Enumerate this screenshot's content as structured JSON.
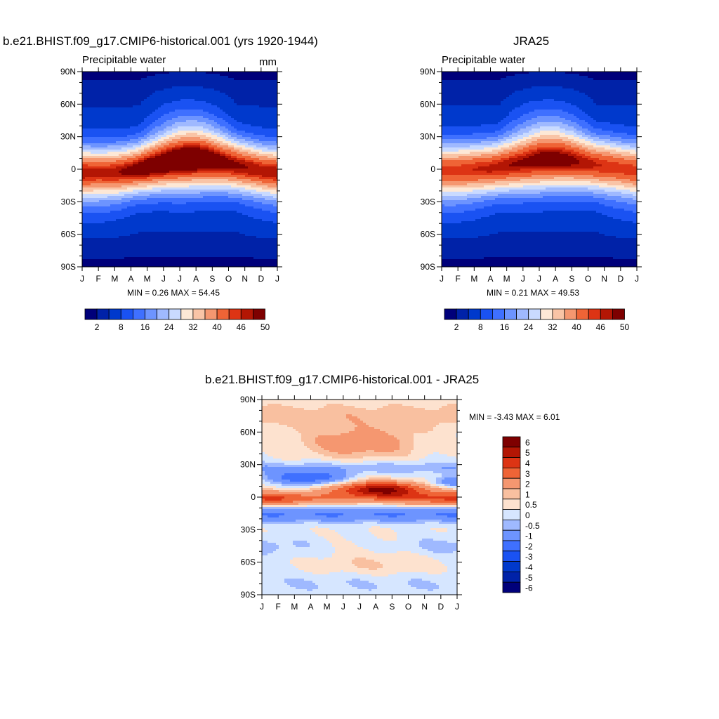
{
  "panels": [
    {
      "title": "b.e21.BHIST.f09_g17.CMIP6-historical.001 (yrs 1920-1944)",
      "variable": "Precipitable water",
      "units": "mm",
      "minmax": "MIN =   0.26 MAX =  54.45"
    },
    {
      "title": "JRA25",
      "variable": "Precipitable water",
      "units": "",
      "minmax": "MIN =   0.21 MAX =  49.53"
    },
    {
      "title": "b.e21.BHIST.f09_g17.CMIP6-historical.001 - JRA25",
      "variable": "",
      "units": "",
      "minmax": "MIN =  -3.43 MAX =   6.01"
    }
  ],
  "colors": {
    "seq": [
      "#00007a",
      "#0022a8",
      "#0039cc",
      "#1a52f2",
      "#3f70ff",
      "#6d94ff",
      "#9fb9ff",
      "#c9daff",
      "#fde8d6",
      "#f9c4a6",
      "#f59770",
      "#ef6436",
      "#dd3414",
      "#b31604",
      "#7e0000"
    ],
    "diff": [
      "#00007a",
      "#0022a8",
      "#0039cc",
      "#1a52f2",
      "#3f70ff",
      "#6d94ff",
      "#9fb9ff",
      "#d6e6ff",
      "#fde2cf",
      "#f9c0a0",
      "#f59770",
      "#ef6436",
      "#dd3414",
      "#b31604",
      "#7e0000"
    ]
  },
  "chart_data": [
    {
      "type": "heatmap",
      "title": "b.e21.BHIST.f09_g17.CMIP6-historical.001 (yrs 1920-1944)",
      "x_ticks": [
        "J",
        "F",
        "M",
        "A",
        "M",
        "J",
        "J",
        "A",
        "S",
        "O",
        "N",
        "D",
        "J"
      ],
      "y_ticks": [
        "90N",
        "60N",
        "30N",
        "0",
        "30S",
        "60S",
        "90S"
      ],
      "colorbar_labels": [
        "2",
        "8",
        "16",
        "24",
        "32",
        "40",
        "46",
        "50"
      ],
      "colorbar_levels": [
        2,
        4,
        8,
        12,
        16,
        20,
        24,
        28,
        32,
        36,
        40,
        44,
        46,
        48,
        50
      ],
      "min": 0.26,
      "max": 54.45,
      "itcz_lat": [
        -3,
        -3,
        -3,
        -1,
        2,
        5,
        7,
        8,
        7,
        5,
        2,
        -1,
        -3
      ],
      "peak": [
        48,
        47,
        48,
        50,
        53,
        54,
        54,
        54,
        52,
        50,
        49,
        48,
        48
      ],
      "width": [
        22,
        22,
        22,
        22,
        23,
        24,
        26,
        26,
        25,
        24,
        23,
        22,
        22
      ]
    },
    {
      "type": "heatmap",
      "title": "JRA25",
      "x_ticks": [
        "J",
        "F",
        "M",
        "A",
        "M",
        "J",
        "J",
        "A",
        "S",
        "O",
        "N",
        "D",
        "J"
      ],
      "y_ticks": [
        "90N",
        "60N",
        "30N",
        "0",
        "30S",
        "60S",
        "90S"
      ],
      "colorbar_labels": [
        "2",
        "8",
        "16",
        "24",
        "32",
        "40",
        "46",
        "50"
      ],
      "colorbar_levels": [
        2,
        4,
        8,
        12,
        16,
        20,
        24,
        28,
        32,
        36,
        40,
        44,
        46,
        48,
        50
      ],
      "min": 0.21,
      "max": 49.53,
      "itcz_lat": [
        -1,
        -1,
        0,
        1,
        3,
        5,
        7,
        8,
        7,
        5,
        3,
        1,
        -1
      ],
      "peak": [
        45,
        45,
        46,
        47,
        48,
        48,
        49,
        49,
        48,
        47,
        46,
        45,
        45
      ],
      "width": [
        23,
        23,
        23,
        23,
        24,
        25,
        26,
        26,
        25,
        24,
        24,
        23,
        23
      ]
    },
    {
      "type": "heatmap",
      "title": "b.e21.BHIST.f09_g17.CMIP6-historical.001 - JRA25",
      "x_ticks": [
        "J",
        "F",
        "M",
        "A",
        "M",
        "J",
        "J",
        "A",
        "S",
        "O",
        "N",
        "D",
        "J"
      ],
      "y_ticks": [
        "90N",
        "60N",
        "30N",
        "0",
        "30S",
        "60S",
        "90S"
      ],
      "colorbar_labels": [
        "6",
        "5",
        "4",
        "3",
        "2",
        "1",
        "0.5",
        "0",
        "-0.5",
        "-1",
        "-2",
        "-3",
        "-4",
        "-5",
        "-6"
      ],
      "colorbar_levels": [
        -6,
        -5,
        -4,
        -3,
        -2,
        -1,
        -0.5,
        0,
        0.5,
        1,
        2,
        3,
        4,
        5,
        6
      ],
      "min": -3.43,
      "max": 6.01
    }
  ]
}
